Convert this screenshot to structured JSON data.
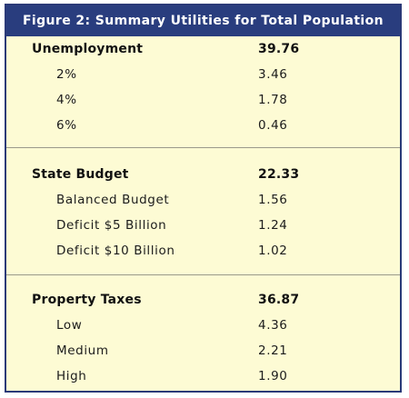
{
  "figure": {
    "title": "Figure 2:  Summary Utilities for Total Population",
    "sections": [
      {
        "name": "Unemployment",
        "total": "39.76",
        "items": [
          {
            "label": "2%",
            "value": "3.46"
          },
          {
            "label": "4%",
            "value": "1.78"
          },
          {
            "label": "6%",
            "value": "0.46"
          }
        ]
      },
      {
        "name": "State Budget",
        "total": "22.33",
        "items": [
          {
            "label": "Balanced Budget",
            "value": "1.56"
          },
          {
            "label": "Deficit $5 Billion",
            "value": "1.24"
          },
          {
            "label": "Deficit $10 Billion",
            "value": "1.02"
          }
        ]
      },
      {
        "name": "Property Taxes",
        "total": "36.87",
        "items": [
          {
            "label": "Low",
            "value": "4.36"
          },
          {
            "label": "Medium",
            "value": "2.21"
          },
          {
            "label": "High",
            "value": "1.90"
          }
        ]
      }
    ]
  },
  "colors": {
    "header_bg": "#293d7e",
    "panel_bg": "#fdfbd4"
  }
}
